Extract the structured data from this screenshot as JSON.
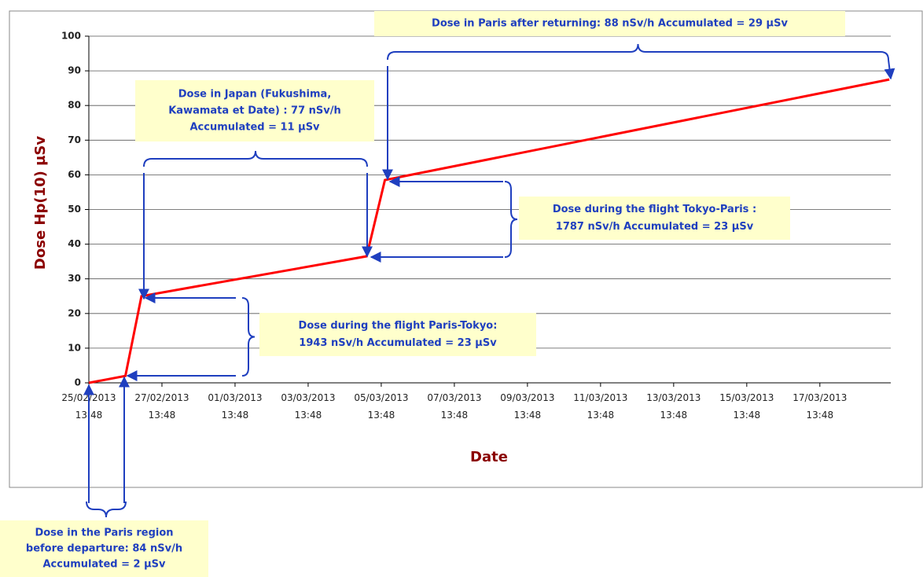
{
  "chart_data": {
    "type": "line",
    "xlabel": "Date",
    "ylabel": "Dose Hp(10) µSv",
    "x": [
      0,
      1,
      1.44,
      7.6,
      8.1,
      21.9
    ],
    "series": [
      {
        "name": "Dose",
        "color": "#ff0000",
        "values": [
          0,
          2,
          25,
          36.5,
          58.5,
          87.5
        ]
      }
    ],
    "xlim": [
      0,
      21.94
    ],
    "ylim": [
      0,
      100
    ],
    "yticks": [
      0,
      10,
      20,
      30,
      40,
      50,
      60,
      70,
      80,
      90,
      100
    ],
    "xticks": [
      {
        "value": 0,
        "label": "25/02/2013 13:48"
      },
      {
        "value": 2,
        "label": "27/02/2013 13:48"
      },
      {
        "value": 4,
        "label": "01/03/2013 13:48"
      },
      {
        "value": 6,
        "label": "03/03/2013 13:48"
      },
      {
        "value": 8,
        "label": "05/03/2013 13:48"
      },
      {
        "value": 10,
        "label": "07/03/2013 13:48"
      },
      {
        "value": 12,
        "label": "09/03/2013 13:48"
      },
      {
        "value": 14,
        "label": "11/03/2013 13:48"
      },
      {
        "value": 16,
        "label": "13/03/2013 13:48"
      },
      {
        "value": 18,
        "label": "15/03/2013 13:48"
      },
      {
        "value": 20,
        "label": "17/03/2013 13:48"
      }
    ],
    "grid": true,
    "annotations": [
      [
        "Dose in Paris after returning: 88 nSv/h Accumulated = 29 µSv"
      ],
      [
        "Dose in Japan (Fukushima,",
        "Kawamata et Date) : 77 nSv/h",
        "Accumulated = 11 µSv"
      ],
      [
        "Dose during the flight Tokyo-Paris :",
        "1787 nSv/h Accumulated = 23 µSv"
      ],
      [
        "Dose during the flight Paris-Tokyo:",
        "1943 nSv/h  Accumulated = 23 µSv"
      ],
      [
        "Dose in the Paris region",
        "before departure: 84 nSv/h",
        "Accumulated = 2 µSv"
      ]
    ]
  }
}
